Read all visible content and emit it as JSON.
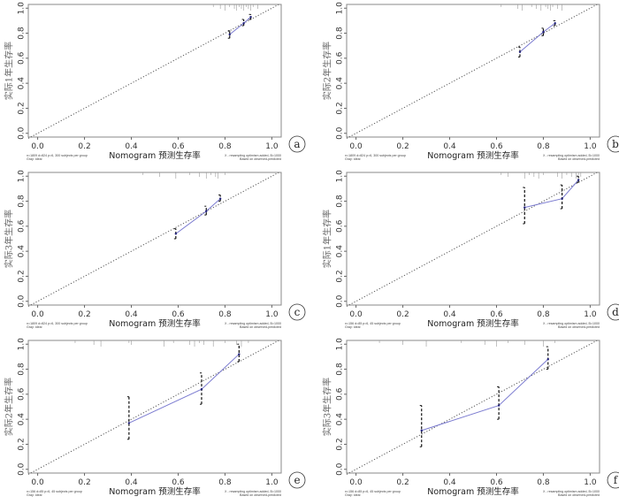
{
  "chart_data": [
    {
      "panel": "a",
      "type": "line",
      "xlabel": "Nomogram 预测生存率",
      "ylabel": "实际1年生存率",
      "xlim": [
        -0.04,
        1.04
      ],
      "ylim": [
        -0.03,
        1.03
      ],
      "xticks": [
        "0.0",
        "0.2",
        "0.4",
        "0.6",
        "0.8",
        "1.0"
      ],
      "yticks": [
        "0.0",
        "0.2",
        "0.4",
        "0.6",
        "0.8",
        "1.0"
      ],
      "x": [
        0.82,
        0.88,
        0.91
      ],
      "y": [
        0.79,
        0.88,
        0.93
      ],
      "ci_low": [
        0.76,
        0.86,
        0.91
      ],
      "ci_high": [
        0.82,
        0.91,
        0.95
      ],
      "rug": [
        0.75,
        0.78,
        0.8,
        0.82,
        0.84,
        0.85,
        0.86,
        0.87,
        0.88,
        0.89,
        0.9,
        0.91,
        0.92,
        0.94
      ],
      "note_left": [
        "n=1809 d=824 p=6, 300 subjects per group",
        "Gray: ideal"
      ],
      "note_right": [
        "X - resampling optimism added, B=1000",
        "Based on observed-predicted"
      ]
    },
    {
      "panel": "b",
      "type": "line",
      "xlabel": "Nomogram 预测生存率",
      "ylabel": "实际2年生存率",
      "xlim": [
        -0.04,
        1.04
      ],
      "ylim": [
        -0.03,
        1.03
      ],
      "xticks": [
        "0.0",
        "0.2",
        "0.4",
        "0.6",
        "0.8",
        "1.0"
      ],
      "yticks": [
        "0.0",
        "0.2",
        "0.4",
        "0.6",
        "0.8",
        "1.0"
      ],
      "x": [
        0.7,
        0.8,
        0.85
      ],
      "y": [
        0.65,
        0.81,
        0.88
      ],
      "ci_low": [
        0.61,
        0.78,
        0.86
      ],
      "ci_high": [
        0.69,
        0.84,
        0.9
      ],
      "rug": [
        0.62,
        0.69,
        0.71,
        0.75,
        0.77,
        0.79,
        0.81,
        0.82,
        0.83,
        0.84,
        0.86,
        0.88
      ],
      "note_left": [
        "n=1809 d=824 p=6, 300 subjects per group",
        "Gray: ideal"
      ],
      "note_right": [
        "X - resampling optimism added, B=1000",
        "Based on observed-predicted"
      ]
    },
    {
      "panel": "c",
      "type": "line",
      "xlabel": "Nomogram 预测生存率",
      "ylabel": "实际3年生存率",
      "xlim": [
        -0.04,
        1.04
      ],
      "ylim": [
        -0.03,
        1.03
      ],
      "xticks": [
        "0.0",
        "0.2",
        "0.4",
        "0.6",
        "0.8",
        "1.0"
      ],
      "yticks": [
        "0.0",
        "0.2",
        "0.4",
        "0.6",
        "0.8",
        "1.0"
      ],
      "x": [
        0.59,
        0.72,
        0.78
      ],
      "y": [
        0.54,
        0.72,
        0.82
      ],
      "ci_low": [
        0.5,
        0.69,
        0.8
      ],
      "ci_high": [
        0.58,
        0.76,
        0.85
      ],
      "rug": [
        0.45,
        0.52,
        0.59,
        0.65,
        0.69,
        0.72,
        0.74,
        0.76,
        0.77,
        0.8
      ],
      "note_left": [
        "n=1809 d=824 p=6, 300 subjects per group",
        "Gray: ideal"
      ],
      "note_right": [
        "X - resampling optimism added, B=1000",
        "Based on observed-predicted"
      ]
    },
    {
      "panel": "d",
      "type": "line",
      "xlabel": "Nomogram 预测生存率",
      "ylabel": "实际1年生存率",
      "xlim": [
        -0.04,
        1.04
      ],
      "ylim": [
        -0.03,
        1.03
      ],
      "xticks": [
        "0.0",
        "0.2",
        "0.4",
        "0.6",
        "0.8",
        "1.0"
      ],
      "yticks": [
        "0.0",
        "0.2",
        "0.4",
        "0.6",
        "0.8",
        "1.0"
      ],
      "x": [
        0.72,
        0.88,
        0.95
      ],
      "y": [
        0.75,
        0.82,
        0.97
      ],
      "ci_low": [
        0.62,
        0.74,
        0.95
      ],
      "ci_high": [
        0.91,
        0.93,
        1.0
      ],
      "rug": [
        0.62,
        0.65,
        0.72,
        0.74,
        0.76,
        0.78,
        0.8,
        0.86,
        0.88,
        0.9,
        0.92,
        0.94,
        0.95,
        0.96
      ],
      "note_left": [
        "n=156 d=85 p=6, 45 subjects per group",
        "Gray: ideal"
      ],
      "note_right": [
        "X - resampling optimism added, B=1000",
        "Based on observed-predicted"
      ]
    },
    {
      "panel": "e",
      "type": "line",
      "xlabel": "Nomogram 预测生存率",
      "ylabel": "实际2年生存率",
      "xlim": [
        -0.04,
        1.04
      ],
      "ylim": [
        -0.03,
        1.03
      ],
      "xticks": [
        "0.0",
        "0.2",
        "0.4",
        "0.6",
        "0.8",
        "1.0"
      ],
      "yticks": [
        "0.0",
        "0.2",
        "0.4",
        "0.6",
        "0.8",
        "1.0"
      ],
      "x": [
        0.39,
        0.7,
        0.86
      ],
      "y": [
        0.37,
        0.64,
        0.92
      ],
      "ci_low": [
        0.24,
        0.52,
        0.86
      ],
      "ci_high": [
        0.58,
        0.77,
        1.0
      ],
      "rug": [
        0.16,
        0.24,
        0.27,
        0.39,
        0.4,
        0.54,
        0.58,
        0.65,
        0.67,
        0.69,
        0.71,
        0.75,
        0.8,
        0.85,
        0.87,
        0.9
      ],
      "note_left": [
        "n=156 d=85 p=6, 45 subjects per group",
        "Gray: ideal"
      ],
      "note_right": [
        "X - resampling optimism added, B=1000",
        "Based on observed-predicted"
      ]
    },
    {
      "panel": "f",
      "type": "line",
      "xlabel": "Nomogram 预测生存率",
      "ylabel": "实际3年生存率",
      "xlim": [
        -0.04,
        1.04
      ],
      "ylim": [
        -0.03,
        1.03
      ],
      "xticks": [
        "0.0",
        "0.2",
        "0.4",
        "0.6",
        "0.8",
        "1.0"
      ],
      "yticks": [
        "0.0",
        "0.2",
        "0.4",
        "0.6",
        "0.8",
        "1.0"
      ],
      "x": [
        0.28,
        0.61,
        0.82
      ],
      "y": [
        0.31,
        0.51,
        0.88
      ],
      "ci_low": [
        0.18,
        0.4,
        0.8
      ],
      "ci_high": [
        0.51,
        0.66,
        0.98
      ],
      "rug": [
        0.1,
        0.2,
        0.3,
        0.45,
        0.55,
        0.6,
        0.65,
        0.72,
        0.8,
        0.85
      ],
      "note_left": [
        "n=156 d=85 p=6, 45 subjects per group",
        "Gray: ideal"
      ],
      "note_right": [
        "X - resampling optimism added, B=1000",
        "Based on observed-predicted"
      ]
    }
  ],
  "colors": {
    "calibration_line": "#7b7bd0",
    "ideal_line": "#555555",
    "error_bar": "#111111",
    "frame": "#888888"
  }
}
